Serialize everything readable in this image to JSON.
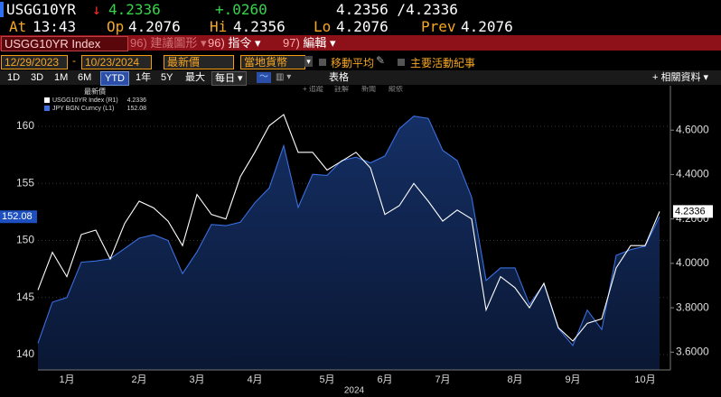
{
  "quote": {
    "ticker": "USGG10YR",
    "arrow": "↓",
    "last": "4.2336",
    "change": "+.0260",
    "bid_ask": "4.2356 /4.2336"
  },
  "stats": {
    "time_label": "At",
    "time": "13:43",
    "open_label": "Op",
    "open": "4.2076",
    "high_label": "Hi",
    "high": "4.2356",
    "low_label": "Lo",
    "low": "4.2076",
    "prev_label": "Prev",
    "prev": "4.2076"
  },
  "command_bar": {
    "security": "USGG10YR Index",
    "menus": [
      {
        "num": "96)",
        "label": "建議圖形"
      },
      {
        "num": "96)",
        "label": "指令"
      },
      {
        "num": "97)",
        "label": "編輯"
      }
    ]
  },
  "controls": {
    "start_date": "12/29/2023",
    "end_date": "10/23/2024",
    "field": "最新價",
    "currency": "當地貨幣",
    "moving_average": "移動平均",
    "events": "主要活動紀事"
  },
  "range_bar": {
    "periods": [
      "1D",
      "3D",
      "1M",
      "6M",
      "YTD",
      "1年",
      "5Y",
      "最大"
    ],
    "frequency": "每日",
    "table": "表格",
    "related": "+ 相關資料"
  },
  "chart_toolbar": [
    "+ 追蹤",
    "註解",
    "新聞",
    "縱依"
  ],
  "chart_data": {
    "type": "line",
    "legend_title": "最新價",
    "x_label": "2024",
    "categories": [
      null,
      null,
      "1月",
      null,
      null,
      null,
      null,
      "2月",
      null,
      null,
      null,
      "3月",
      null,
      null,
      null,
      "4月",
      null,
      null,
      null,
      null,
      "5月",
      null,
      null,
      null,
      "6月",
      null,
      null,
      null,
      "7月",
      null,
      null,
      null,
      null,
      "8月",
      null,
      null,
      null,
      "9月",
      null,
      null,
      null,
      null,
      "10月",
      null
    ],
    "series": [
      {
        "name": "USGG10YR Index (R1)",
        "color": "#ffffff",
        "axis": "y2",
        "values": [
          3.88,
          4.05,
          3.94,
          4.13,
          4.15,
          4.02,
          4.18,
          4.28,
          4.25,
          4.19,
          4.08,
          4.31,
          4.22,
          4.2,
          4.39,
          4.5,
          4.62,
          4.67,
          4.5,
          4.5,
          4.42,
          4.46,
          4.5,
          4.43,
          4.22,
          4.26,
          4.36,
          4.28,
          4.19,
          4.24,
          4.2,
          3.79,
          3.94,
          3.89,
          3.8,
          3.91,
          3.71,
          3.65,
          3.73,
          3.75,
          3.98,
          4.08,
          4.08,
          4.2336
        ]
      },
      {
        "name": "JPY BGN Curncy (L1)",
        "color": "#3a6fe0",
        "area": true,
        "values": [
          141.0,
          144.6,
          145.0,
          148.1,
          148.2,
          148.4,
          149.3,
          150.2,
          150.5,
          150.0,
          147.1,
          149.0,
          151.4,
          151.3,
          151.6,
          153.3,
          154.6,
          158.3,
          152.9,
          155.8,
          155.7,
          157.0,
          157.3,
          156.8,
          157.4,
          159.8,
          160.9,
          160.7,
          157.9,
          157.0,
          153.8,
          146.5,
          147.6,
          147.6,
          144.4,
          146.2,
          142.3,
          140.8,
          143.9,
          142.2,
          148.7,
          149.2,
          149.5,
          152.08
        ]
      }
    ],
    "ylim": [
      138.66,
      163.56
    ],
    "yticks": [
      140,
      145,
      150,
      155,
      160
    ],
    "y2lim": [
      3.52,
      4.8
    ],
    "y2ticks": [
      {
        "value": 3.6,
        "label": "3.6000"
      },
      {
        "value": 3.8,
        "label": "3.8000"
      },
      {
        "value": 4.0,
        "label": "4.0000"
      },
      {
        "value": 4.2,
        "label": "4.2000"
      },
      {
        "value": 4.4,
        "label": "4.4000"
      },
      {
        "value": 4.6,
        "label": "4.6000"
      }
    ],
    "grid": true
  }
}
